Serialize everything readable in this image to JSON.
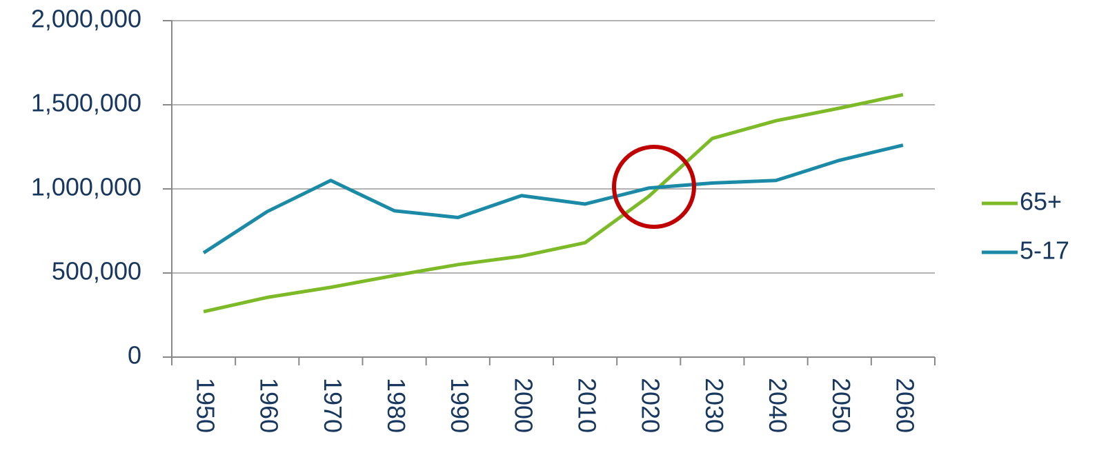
{
  "chart_data": {
    "type": "line",
    "categories": [
      "1950",
      "1960",
      "1970",
      "1980",
      "1990",
      "2000",
      "2010",
      "2020",
      "2030",
      "2040",
      "2050",
      "2060"
    ],
    "series": [
      {
        "name": "65+",
        "color": "#7dba28",
        "values": [
          270000,
          355000,
          415000,
          485000,
          550000,
          600000,
          680000,
          955000,
          1300000,
          1405000,
          1480000,
          1560000
        ]
      },
      {
        "name": "5-17",
        "color": "#1b8aa6",
        "values": [
          620000,
          865000,
          1050000,
          870000,
          830000,
          960000,
          910000,
          1005000,
          1035000,
          1050000,
          1170000,
          1260000
        ]
      }
    ],
    "ylim": [
      0,
      2000000
    ],
    "yticks": [
      0,
      {
        "value": 500000,
        "label": "500,000"
      },
      {
        "value": 1000000,
        "label": "1,000,000"
      },
      {
        "value": 1500000,
        "label": "1,500,000"
      },
      {
        "value": 2000000,
        "label": "2,000,000"
      }
    ],
    "grid": true,
    "legend": "right"
  }
}
